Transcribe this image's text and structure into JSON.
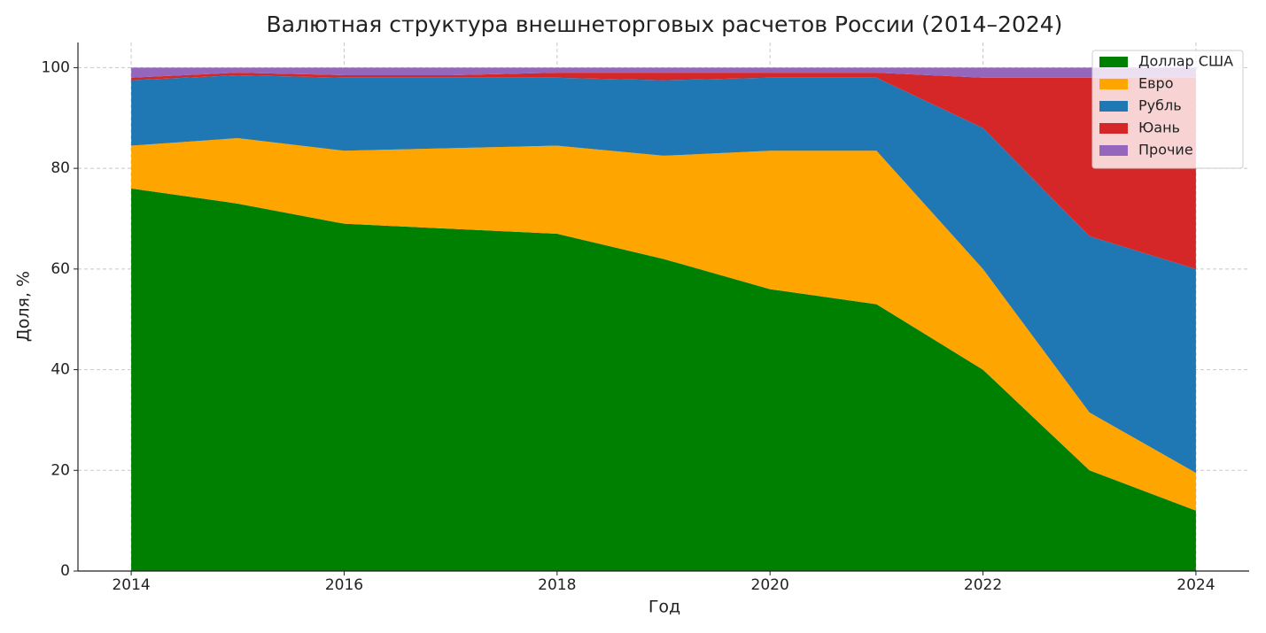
{
  "chart_data": {
    "type": "stacked_area",
    "title": "Валютная структура внешнеторговых расчетов России (2014–2024)",
    "xlabel": "Год",
    "ylabel": "Доля, %",
    "x": [
      2014,
      2015,
      2016,
      2017,
      2018,
      2019,
      2020,
      2021,
      2022,
      2023,
      2024
    ],
    "series": [
      {
        "name": "Доллар США",
        "color": "#008000",
        "values": [
          76,
          73,
          69,
          68,
          67,
          62,
          56,
          53,
          40,
          20,
          12
        ]
      },
      {
        "name": "Евро",
        "color": "#ffa500",
        "values": [
          8.5,
          13,
          14.5,
          16,
          17.5,
          20.5,
          27.5,
          30.5,
          20,
          11.5,
          7.5
        ]
      },
      {
        "name": "Рубль",
        "color": "#1f77b4",
        "values": [
          13,
          12.5,
          14.5,
          14,
          13.5,
          15,
          14.5,
          14.5,
          28,
          35,
          40.5
        ]
      },
      {
        "name": "Юань",
        "color": "#d62728",
        "values": [
          0.5,
          0.5,
          0.5,
          0.5,
          1,
          1.5,
          1,
          1,
          10,
          31.5,
          38
        ]
      },
      {
        "name": "Прочие",
        "color": "#9467bd",
        "values": [
          2,
          1,
          1.5,
          1.5,
          1,
          1,
          1,
          1,
          2,
          2,
          2
        ]
      }
    ],
    "xlim": [
      2013.5,
      2024.5
    ],
    "xticks": [
      2014,
      2016,
      2018,
      2020,
      2022,
      2024
    ],
    "ylim": [
      0,
      105
    ],
    "yticks": [
      0,
      20,
      40,
      60,
      80,
      100
    ],
    "grid": true,
    "legend": "upper right"
  }
}
